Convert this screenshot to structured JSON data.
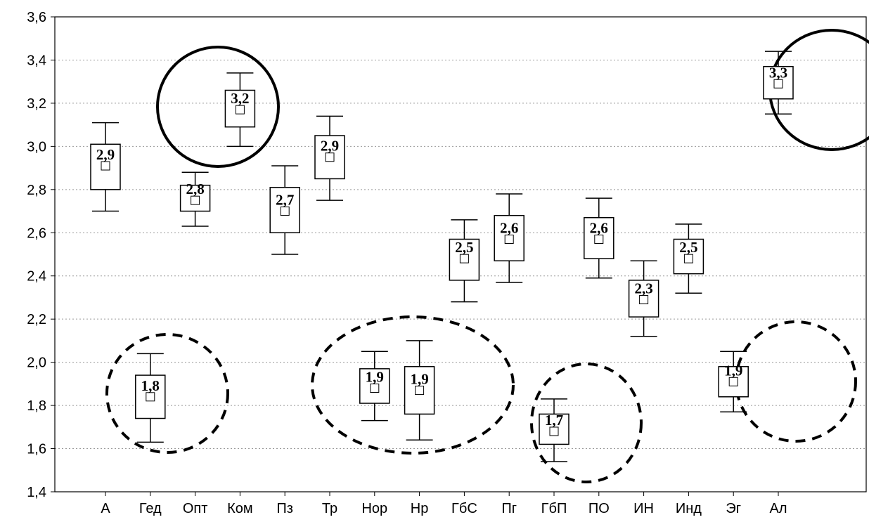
{
  "chart_data": {
    "type": "boxplot",
    "title": "",
    "xlabel": "",
    "ylabel": "",
    "ylim": [
      1.4,
      3.6
    ],
    "yticks": [
      "1,4",
      "1,6",
      "1,8",
      "2,0",
      "2,2",
      "2,4",
      "2,6",
      "2,8",
      "3,0",
      "3,2",
      "3,4",
      "3,6"
    ],
    "grid": true,
    "categories": [
      "А",
      "Гед",
      "Опт",
      "Ком",
      "Пз",
      "Тр",
      "Нор",
      "Нр",
      "ГбС",
      "Пг",
      "ГбП",
      "ПО",
      "ИН",
      "Инд",
      "Эг",
      "Ал"
    ],
    "series": [
      {
        "mean": [
          2.91,
          1.84,
          2.75,
          3.17,
          2.7,
          2.95,
          1.88,
          1.87,
          2.48,
          2.57,
          1.68,
          2.57,
          2.29,
          2.48,
          1.91,
          3.29
        ],
        "box_low": [
          2.8,
          1.74,
          2.7,
          3.09,
          2.6,
          2.85,
          1.81,
          1.76,
          2.38,
          2.47,
          1.62,
          2.48,
          2.21,
          2.41,
          1.84,
          3.22
        ],
        "box_high": [
          3.01,
          1.94,
          2.82,
          3.26,
          2.81,
          3.05,
          1.97,
          1.98,
          2.57,
          2.68,
          1.76,
          2.67,
          2.38,
          2.57,
          1.98,
          3.37
        ],
        "whisker_low": [
          2.7,
          1.63,
          2.63,
          3.0,
          2.5,
          2.75,
          1.73,
          1.64,
          2.28,
          2.37,
          1.54,
          2.39,
          2.12,
          2.32,
          1.77,
          3.15
        ],
        "whisker_high": [
          3.11,
          2.04,
          2.88,
          3.34,
          2.91,
          3.14,
          2.05,
          2.1,
          2.66,
          2.78,
          1.83,
          2.76,
          2.47,
          2.64,
          2.05,
          3.44
        ],
        "labels": [
          "2,9",
          "1,8",
          "2,8",
          "3,2",
          "2,7",
          "2,9",
          "1,9",
          "1,9",
          "2,5",
          "2,6",
          "1,7",
          "2,6",
          "2,3",
          "2,5",
          "1,9",
          "3,3"
        ]
      }
    ]
  }
}
